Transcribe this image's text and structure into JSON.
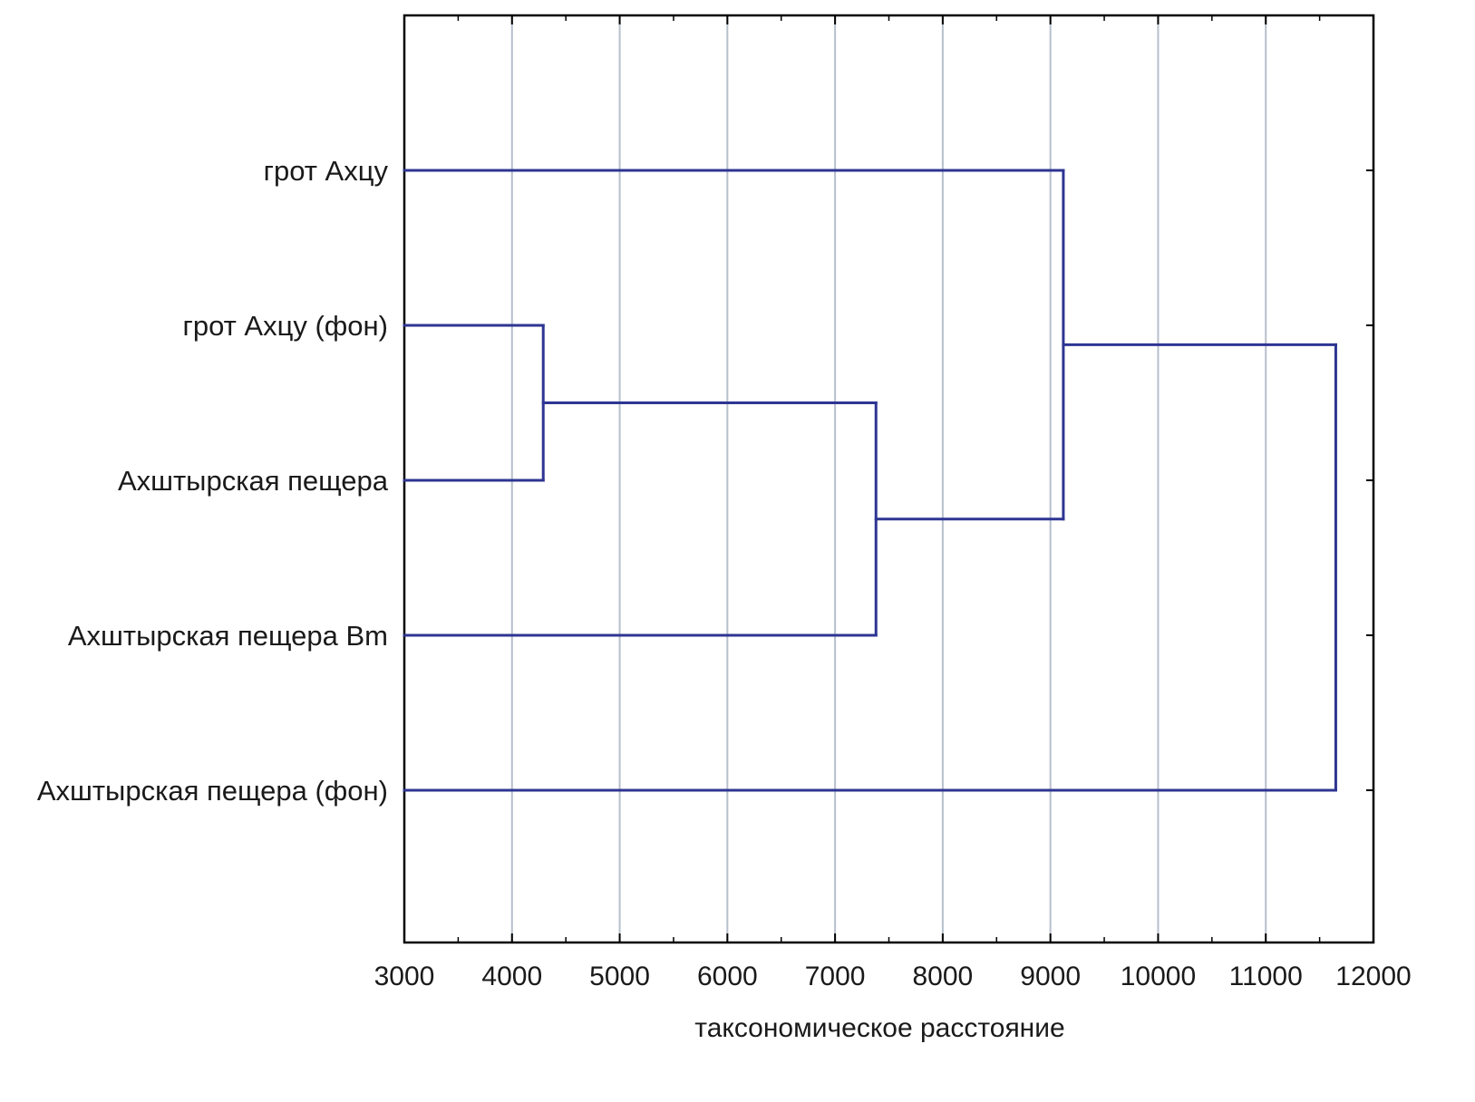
{
  "chart_data": {
    "type": "dendrogram",
    "orientation": "horizontal",
    "title": "",
    "xlabel": "таксономическое расстояние",
    "ylabel": "",
    "xlim": [
      3000,
      12000
    ],
    "xticks": [
      3000,
      4000,
      5000,
      6000,
      7000,
      8000,
      9000,
      10000,
      11000,
      12000
    ],
    "grid": true,
    "line_color": "#2e3592",
    "grid_color": "#b7bfcc",
    "leaves": [
      "грот Ахцу",
      "грот Ахцу (фон)",
      "Ахштырская пещера",
      "Ахштырская пещера Bm",
      "Ахштырская пещера (фон)"
    ],
    "merges": [
      {
        "a": "leaf:1",
        "b": "leaf:2",
        "height": 4290
      },
      {
        "a": "node:0",
        "b": "leaf:3",
        "height": 7380
      },
      {
        "a": "leaf:0",
        "b": "node:1",
        "height": 9120
      },
      {
        "a": "node:2",
        "b": "leaf:4",
        "height": 11650
      }
    ]
  }
}
